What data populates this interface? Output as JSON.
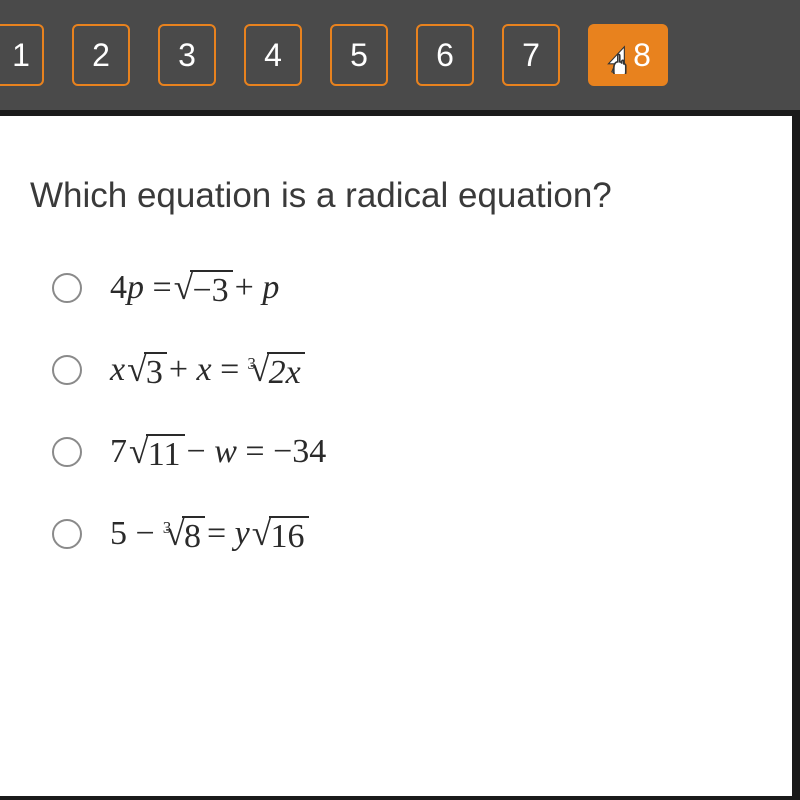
{
  "nav": {
    "items": [
      "1",
      "2",
      "3",
      "4",
      "5",
      "6",
      "7"
    ],
    "active": "8",
    "item_border_color": "#e8821e",
    "active_bg": "#e8821e",
    "bar_bg": "#4a4a4a",
    "text_color": "#ffffff"
  },
  "question": {
    "text": "Which equation is a radical equation?",
    "fontsize": 35,
    "color": "#3a3a3a"
  },
  "options": [
    {
      "parts": [
        {
          "type": "text",
          "value": "4p = "
        },
        {
          "type": "sqrt",
          "index": "",
          "radicand": "−3",
          "radicand_style": "plain"
        },
        {
          "type": "text",
          "value": " + p"
        }
      ]
    },
    {
      "parts": [
        {
          "type": "text",
          "value": "x"
        },
        {
          "type": "sqrt",
          "index": "",
          "radicand": "3",
          "radicand_style": "plain"
        },
        {
          "type": "text",
          "value": " + x = "
        },
        {
          "type": "sqrt",
          "index": "3",
          "radicand": "2x"
        }
      ]
    },
    {
      "parts": [
        {
          "type": "text",
          "value": "7"
        },
        {
          "type": "sqrt",
          "index": "",
          "radicand": "11",
          "radicand_style": "plain"
        },
        {
          "type": "text",
          "value": " − w = −34"
        }
      ]
    },
    {
      "parts": [
        {
          "type": "text",
          "value": "5 − "
        },
        {
          "type": "sqrt",
          "index": "3",
          "radicand": "8",
          "radicand_style": "plain"
        },
        {
          "type": "text",
          "value": " = y"
        },
        {
          "type": "sqrt",
          "index": "",
          "radicand": "16",
          "radicand_style": "plain"
        }
      ]
    }
  ],
  "styling": {
    "content_bg": "#ffffff",
    "radio_border": "#8a8a8a",
    "equation_font": "Times New Roman",
    "equation_fontsize": 34,
    "equation_color": "#2a2a2a"
  }
}
